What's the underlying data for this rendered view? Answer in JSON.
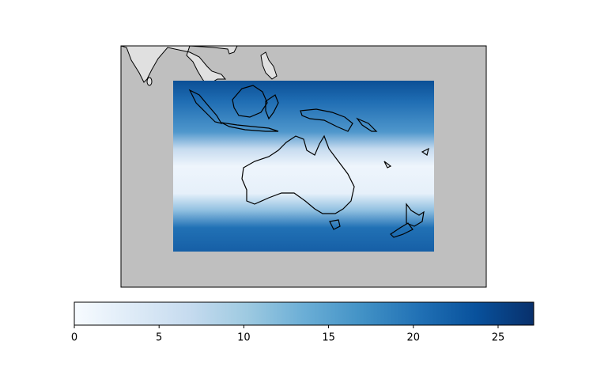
{
  "colorbar": {
    "cmap": "Blues",
    "clim": [
      0,
      27.1
    ],
    "ticks": [
      0,
      5,
      10,
      15,
      20,
      25
    ]
  }
}
